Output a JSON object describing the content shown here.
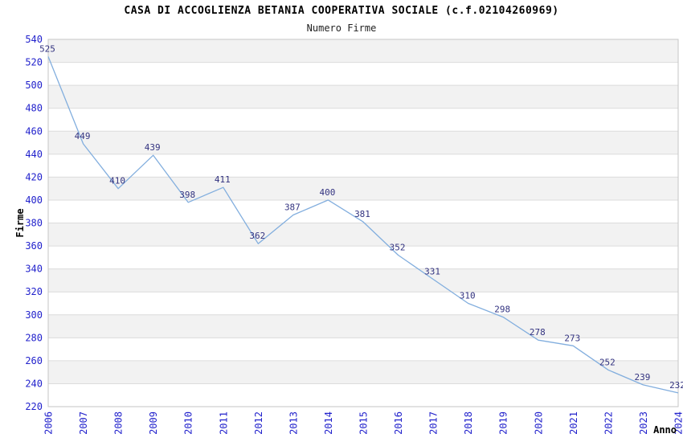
{
  "header": {
    "title": "CASA DI ACCOGLIENZA BETANIA COOPERATIVA SOCIALE (c.f.02104260969)",
    "subtitle": "Numero Firme"
  },
  "chart_data": {
    "type": "line",
    "title": "CASA DI ACCOGLIENZA BETANIA COOPERATIVA SOCIALE (c.f.02104260969)",
    "subtitle": "Numero Firme",
    "xlabel": "Anno",
    "ylabel": "Firme",
    "categories": [
      "2006",
      "2007",
      "2008",
      "2009",
      "2010",
      "2011",
      "2012",
      "2013",
      "2014",
      "2015",
      "2016",
      "2017",
      "2018",
      "2019",
      "2020",
      "2021",
      "2022",
      "2023",
      "2024"
    ],
    "series": [
      {
        "name": "Numero Firme",
        "values": [
          525,
          449,
          410,
          439,
          398,
          411,
          362,
          387,
          400,
          381,
          352,
          331,
          310,
          298,
          278,
          273,
          252,
          239,
          232
        ]
      }
    ],
    "ylim": [
      220,
      540
    ],
    "ytick_step": 20,
    "grid": "horizontal-bands",
    "legend": "none",
    "data_labels": true,
    "colors": {
      "line": "#82aede",
      "data_label": "#333380",
      "tick_label": "#2222cc",
      "band_fill": "#f2f2f2",
      "band_alt_fill": "#ffffff",
      "grid_line": "#dcdcdc",
      "plot_border": "#c6c6c6",
      "title": "#000000",
      "subtitle": "#222222",
      "axis_title": "#000000"
    }
  }
}
